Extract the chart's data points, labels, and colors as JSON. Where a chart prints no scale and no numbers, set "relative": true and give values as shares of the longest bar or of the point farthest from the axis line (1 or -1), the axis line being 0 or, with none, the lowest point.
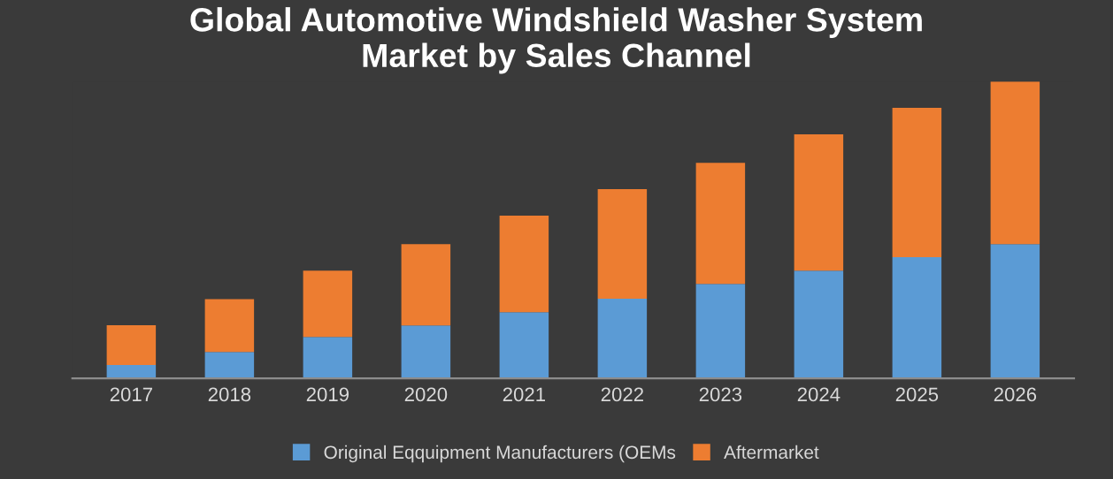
{
  "chart_data": {
    "type": "bar",
    "title": "Global Automotive Windshield Washer System\nMarket by Sales Channel",
    "categories": [
      "2017",
      "2018",
      "2019",
      "2020",
      "2021",
      "2022",
      "2023",
      "2024",
      "2025",
      "2026"
    ],
    "stacked": true,
    "relative": true,
    "legend": "bottom",
    "grid": false,
    "series": [
      {
        "name": "Original Eqquipment Manufacturers (OEMs",
        "color": "#5b9bd5",
        "values": [
          0.045,
          0.089,
          0.14,
          0.178,
          0.223,
          0.268,
          0.318,
          0.363,
          0.408,
          0.452
        ]
      },
      {
        "name": "Aftermarket",
        "color": "#ed7d31",
        "values": [
          0.134,
          0.178,
          0.223,
          0.274,
          0.325,
          0.369,
          0.408,
          0.459,
          0.503,
          0.548
        ]
      }
    ]
  }
}
